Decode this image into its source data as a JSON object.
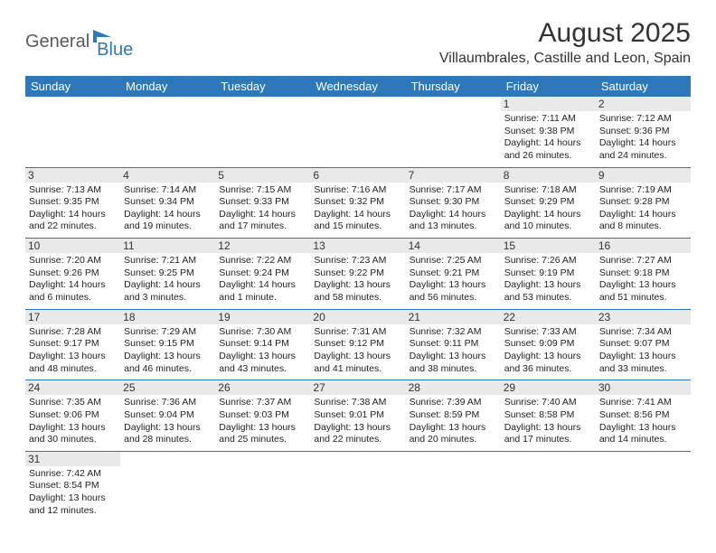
{
  "logo": {
    "part1": "General",
    "part2": "Blue"
  },
  "title": "August 2025",
  "location": "Villaumbrales, Castille and Leon, Spain",
  "colors": {
    "header_bg": "#2e77b8",
    "header_text": "#ffffff",
    "daynum_bg": "#e9e9e9",
    "border": "#2e77b8",
    "logo_gray": "#5a5a5a",
    "logo_blue": "#2e77b8"
  },
  "day_headers": [
    "Sunday",
    "Monday",
    "Tuesday",
    "Wednesday",
    "Thursday",
    "Friday",
    "Saturday"
  ],
  "weeks": [
    [
      {
        "n": "",
        "sr": "",
        "ss": "",
        "dl": ""
      },
      {
        "n": "",
        "sr": "",
        "ss": "",
        "dl": ""
      },
      {
        "n": "",
        "sr": "",
        "ss": "",
        "dl": ""
      },
      {
        "n": "",
        "sr": "",
        "ss": "",
        "dl": ""
      },
      {
        "n": "",
        "sr": "",
        "ss": "",
        "dl": ""
      },
      {
        "n": "1",
        "sr": "Sunrise: 7:11 AM",
        "ss": "Sunset: 9:38 PM",
        "dl": "Daylight: 14 hours and 26 minutes."
      },
      {
        "n": "2",
        "sr": "Sunrise: 7:12 AM",
        "ss": "Sunset: 9:36 PM",
        "dl": "Daylight: 14 hours and 24 minutes."
      }
    ],
    [
      {
        "n": "3",
        "sr": "Sunrise: 7:13 AM",
        "ss": "Sunset: 9:35 PM",
        "dl": "Daylight: 14 hours and 22 minutes."
      },
      {
        "n": "4",
        "sr": "Sunrise: 7:14 AM",
        "ss": "Sunset: 9:34 PM",
        "dl": "Daylight: 14 hours and 19 minutes."
      },
      {
        "n": "5",
        "sr": "Sunrise: 7:15 AM",
        "ss": "Sunset: 9:33 PM",
        "dl": "Daylight: 14 hours and 17 minutes."
      },
      {
        "n": "6",
        "sr": "Sunrise: 7:16 AM",
        "ss": "Sunset: 9:32 PM",
        "dl": "Daylight: 14 hours and 15 minutes."
      },
      {
        "n": "7",
        "sr": "Sunrise: 7:17 AM",
        "ss": "Sunset: 9:30 PM",
        "dl": "Daylight: 14 hours and 13 minutes."
      },
      {
        "n": "8",
        "sr": "Sunrise: 7:18 AM",
        "ss": "Sunset: 9:29 PM",
        "dl": "Daylight: 14 hours and 10 minutes."
      },
      {
        "n": "9",
        "sr": "Sunrise: 7:19 AM",
        "ss": "Sunset: 9:28 PM",
        "dl": "Daylight: 14 hours and 8 minutes."
      }
    ],
    [
      {
        "n": "10",
        "sr": "Sunrise: 7:20 AM",
        "ss": "Sunset: 9:26 PM",
        "dl": "Daylight: 14 hours and 6 minutes."
      },
      {
        "n": "11",
        "sr": "Sunrise: 7:21 AM",
        "ss": "Sunset: 9:25 PM",
        "dl": "Daylight: 14 hours and 3 minutes."
      },
      {
        "n": "12",
        "sr": "Sunrise: 7:22 AM",
        "ss": "Sunset: 9:24 PM",
        "dl": "Daylight: 14 hours and 1 minute."
      },
      {
        "n": "13",
        "sr": "Sunrise: 7:23 AM",
        "ss": "Sunset: 9:22 PM",
        "dl": "Daylight: 13 hours and 58 minutes."
      },
      {
        "n": "14",
        "sr": "Sunrise: 7:25 AM",
        "ss": "Sunset: 9:21 PM",
        "dl": "Daylight: 13 hours and 56 minutes."
      },
      {
        "n": "15",
        "sr": "Sunrise: 7:26 AM",
        "ss": "Sunset: 9:19 PM",
        "dl": "Daylight: 13 hours and 53 minutes."
      },
      {
        "n": "16",
        "sr": "Sunrise: 7:27 AM",
        "ss": "Sunset: 9:18 PM",
        "dl": "Daylight: 13 hours and 51 minutes."
      }
    ],
    [
      {
        "n": "17",
        "sr": "Sunrise: 7:28 AM",
        "ss": "Sunset: 9:17 PM",
        "dl": "Daylight: 13 hours and 48 minutes."
      },
      {
        "n": "18",
        "sr": "Sunrise: 7:29 AM",
        "ss": "Sunset: 9:15 PM",
        "dl": "Daylight: 13 hours and 46 minutes."
      },
      {
        "n": "19",
        "sr": "Sunrise: 7:30 AM",
        "ss": "Sunset: 9:14 PM",
        "dl": "Daylight: 13 hours and 43 minutes."
      },
      {
        "n": "20",
        "sr": "Sunrise: 7:31 AM",
        "ss": "Sunset: 9:12 PM",
        "dl": "Daylight: 13 hours and 41 minutes."
      },
      {
        "n": "21",
        "sr": "Sunrise: 7:32 AM",
        "ss": "Sunset: 9:11 PM",
        "dl": "Daylight: 13 hours and 38 minutes."
      },
      {
        "n": "22",
        "sr": "Sunrise: 7:33 AM",
        "ss": "Sunset: 9:09 PM",
        "dl": "Daylight: 13 hours and 36 minutes."
      },
      {
        "n": "23",
        "sr": "Sunrise: 7:34 AM",
        "ss": "Sunset: 9:07 PM",
        "dl": "Daylight: 13 hours and 33 minutes."
      }
    ],
    [
      {
        "n": "24",
        "sr": "Sunrise: 7:35 AM",
        "ss": "Sunset: 9:06 PM",
        "dl": "Daylight: 13 hours and 30 minutes."
      },
      {
        "n": "25",
        "sr": "Sunrise: 7:36 AM",
        "ss": "Sunset: 9:04 PM",
        "dl": "Daylight: 13 hours and 28 minutes."
      },
      {
        "n": "26",
        "sr": "Sunrise: 7:37 AM",
        "ss": "Sunset: 9:03 PM",
        "dl": "Daylight: 13 hours and 25 minutes."
      },
      {
        "n": "27",
        "sr": "Sunrise: 7:38 AM",
        "ss": "Sunset: 9:01 PM",
        "dl": "Daylight: 13 hours and 22 minutes."
      },
      {
        "n": "28",
        "sr": "Sunrise: 7:39 AM",
        "ss": "Sunset: 8:59 PM",
        "dl": "Daylight: 13 hours and 20 minutes."
      },
      {
        "n": "29",
        "sr": "Sunrise: 7:40 AM",
        "ss": "Sunset: 8:58 PM",
        "dl": "Daylight: 13 hours and 17 minutes."
      },
      {
        "n": "30",
        "sr": "Sunrise: 7:41 AM",
        "ss": "Sunset: 8:56 PM",
        "dl": "Daylight: 13 hours and 14 minutes."
      }
    ],
    [
      {
        "n": "31",
        "sr": "Sunrise: 7:42 AM",
        "ss": "Sunset: 8:54 PM",
        "dl": "Daylight: 13 hours and 12 minutes."
      },
      {
        "n": "",
        "sr": "",
        "ss": "",
        "dl": ""
      },
      {
        "n": "",
        "sr": "",
        "ss": "",
        "dl": ""
      },
      {
        "n": "",
        "sr": "",
        "ss": "",
        "dl": ""
      },
      {
        "n": "",
        "sr": "",
        "ss": "",
        "dl": ""
      },
      {
        "n": "",
        "sr": "",
        "ss": "",
        "dl": ""
      },
      {
        "n": "",
        "sr": "",
        "ss": "",
        "dl": ""
      }
    ]
  ]
}
